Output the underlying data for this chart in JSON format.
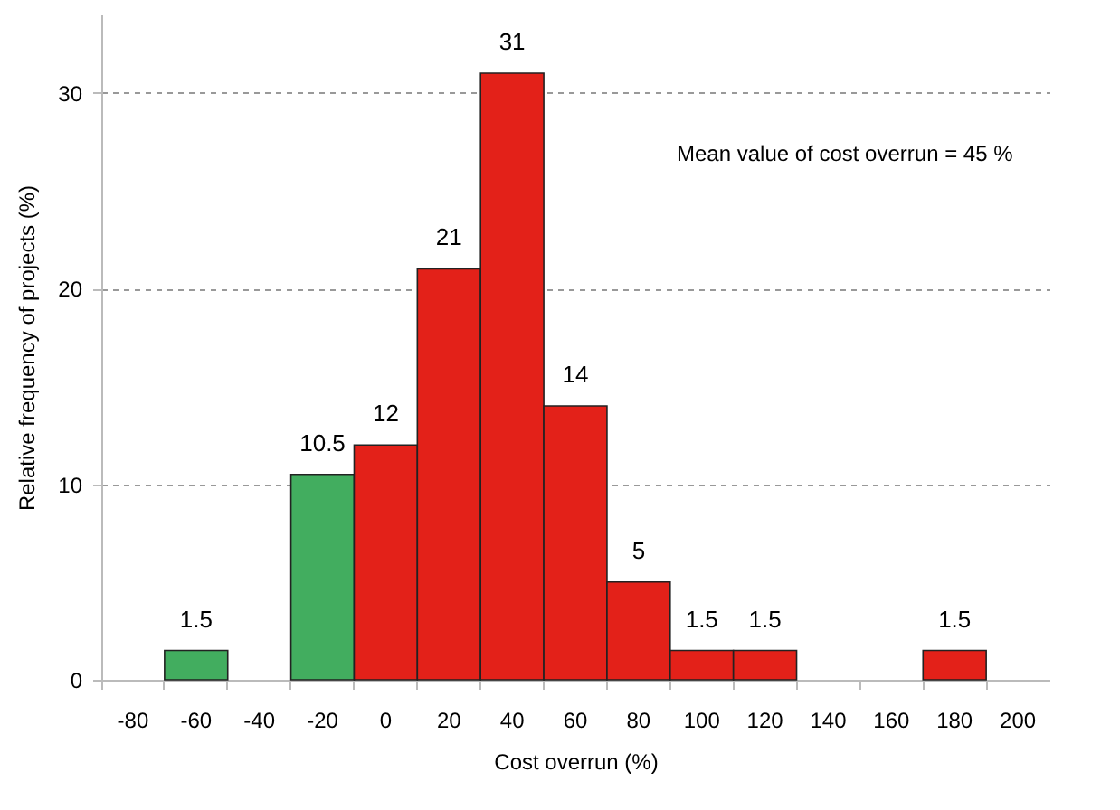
{
  "chart_data": {
    "type": "bar",
    "xlabel": "Cost overrun (%)",
    "ylabel": "Relative frequency of projects (%)",
    "categories": [
      "-80",
      "-60",
      "-40",
      "-20",
      "0",
      "20",
      "40",
      "60",
      "80",
      "100",
      "120",
      "140",
      "160",
      "180",
      "200"
    ],
    "values": [
      null,
      1.5,
      null,
      10.5,
      12,
      21,
      31,
      14,
      5,
      1.5,
      1.5,
      null,
      null,
      1.5,
      null
    ],
    "colors": [
      "#e32119",
      "#42ad5f",
      "#e32119",
      "#42ad5f",
      "#e32119",
      "#e32119",
      "#e32119",
      "#e32119",
      "#e32119",
      "#e32119",
      "#e32119",
      "#e32119",
      "#e32119",
      "#e32119",
      "#e32119"
    ],
    "ylim": [
      0,
      34
    ],
    "yticks": [
      0,
      10,
      20,
      30
    ],
    "grid": "y",
    "data_labels": true,
    "annotations": [
      "Mean value of cost overrun = 45 %"
    ]
  }
}
